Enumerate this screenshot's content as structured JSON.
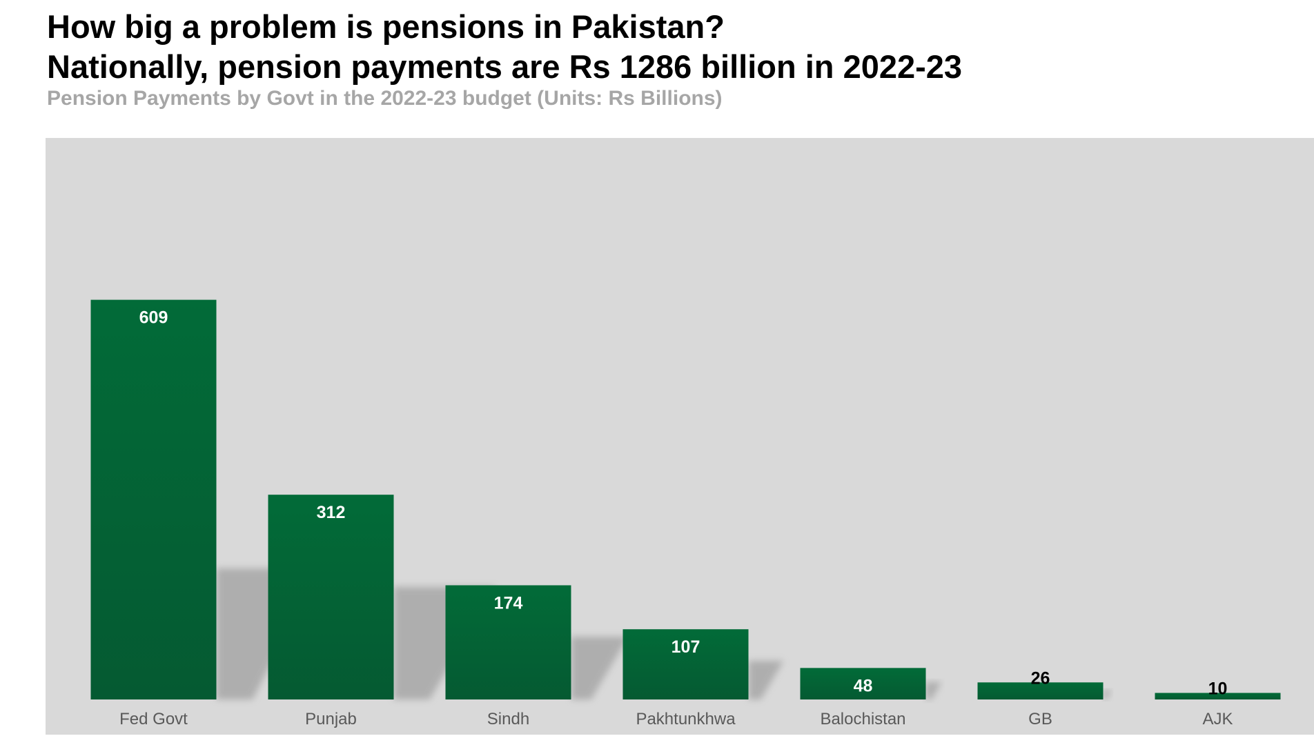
{
  "header": {
    "title_line1": "How big a problem is pensions in Pakistan?",
    "title_line2": "Nationally, pension payments are Rs 1286 billion in 2022-23",
    "subtitle": "Pension Payments by Govt in the 2022-23 budget (Units: Rs Billions)"
  },
  "colors": {
    "bar_top": "#026b38",
    "bar_bottom": "#055a32",
    "plot_background": "#d9d9d9",
    "label_inside": "#ffffff",
    "label_small": "#000000",
    "category_text": "#595959"
  },
  "chart_data": {
    "type": "bar",
    "title": "How big a problem is pensions in Pakistan? Nationally, pension payments are Rs 1286 billion in 2022-23",
    "subtitle": "Pension Payments by Govt in the 2022-23 budget (Units: Rs Billions)",
    "categories": [
      "Fed Govt",
      "Punjab",
      "Sindh",
      "Pakhtunkhwa",
      "Balochistan",
      "GB",
      "AJK"
    ],
    "values": [
      609,
      312,
      174,
      107,
      48,
      26,
      10
    ],
    "ylim": [
      0,
      720
    ],
    "grid": false,
    "legend": "none",
    "data_labels": true
  }
}
